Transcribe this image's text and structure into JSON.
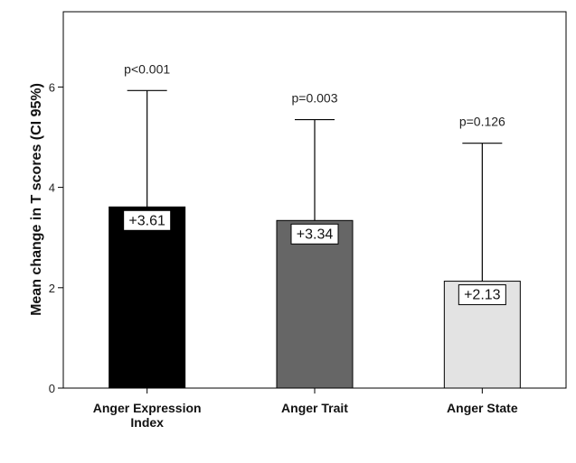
{
  "chart_data": {
    "type": "bar",
    "ylabel": "Mean change in T scores (CI 95%)",
    "xlabel": "",
    "ylim": [
      0,
      7.5
    ],
    "yticks": [
      0,
      2,
      4,
      6
    ],
    "grid": false,
    "categories": [
      [
        "Anger Expression",
        "Index"
      ],
      [
        "Anger Trait"
      ],
      [
        "Anger State"
      ]
    ],
    "values": [
      3.61,
      3.34,
      2.13
    ],
    "value_labels": [
      "+3.61",
      "+3.34",
      "+2.13"
    ],
    "ci_upper": [
      5.93,
      5.35,
      4.88
    ],
    "p_values": [
      "p<0.001",
      "p=0.003",
      "p=0.126"
    ],
    "bar_colors": [
      "#000000",
      "#666666",
      "#e3e3e3"
    ]
  }
}
